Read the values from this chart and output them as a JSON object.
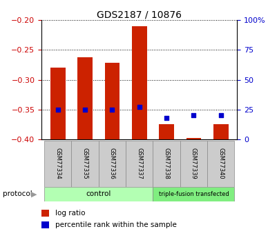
{
  "title": "GDS2187 / 10876",
  "samples": [
    "GSM77334",
    "GSM77335",
    "GSM77336",
    "GSM77337",
    "GSM77338",
    "GSM77339",
    "GSM77340"
  ],
  "log_ratio": [
    -0.28,
    -0.262,
    -0.272,
    -0.21,
    -0.375,
    -0.398,
    -0.375
  ],
  "percentile_rank": [
    25,
    25,
    25,
    27,
    18,
    20,
    20
  ],
  "ylim_left": [
    -0.4,
    -0.2
  ],
  "ylim_right": [
    0,
    100
  ],
  "yticks_left": [
    -0.4,
    -0.35,
    -0.3,
    -0.25,
    -0.2
  ],
  "yticks_right": [
    0,
    25,
    50,
    75,
    100
  ],
  "ytick_labels_right": [
    "0",
    "25",
    "50",
    "75",
    "100%"
  ],
  "groups": [
    {
      "label": "control",
      "samples": [
        0,
        1,
        2,
        3
      ],
      "color": "#b3ffb3"
    },
    {
      "label": "triple-fusion transfected",
      "samples": [
        4,
        5,
        6
      ],
      "color": "#80ee80"
    }
  ],
  "bar_color": "#cc2200",
  "dot_color": "#0000cc",
  "bar_width": 0.55,
  "protocol_label": "protocol",
  "legend_items": [
    {
      "label": "log ratio",
      "color": "#cc2200"
    },
    {
      "label": "percentile rank within the sample",
      "color": "#0000cc"
    }
  ],
  "grid_color": "black",
  "background_color": "white",
  "tick_label_color_left": "#cc0000",
  "tick_label_color_right": "#0000cc",
  "sample_box_color": "#cccccc",
  "figsize": [
    3.88,
    3.45
  ],
  "dpi": 100
}
